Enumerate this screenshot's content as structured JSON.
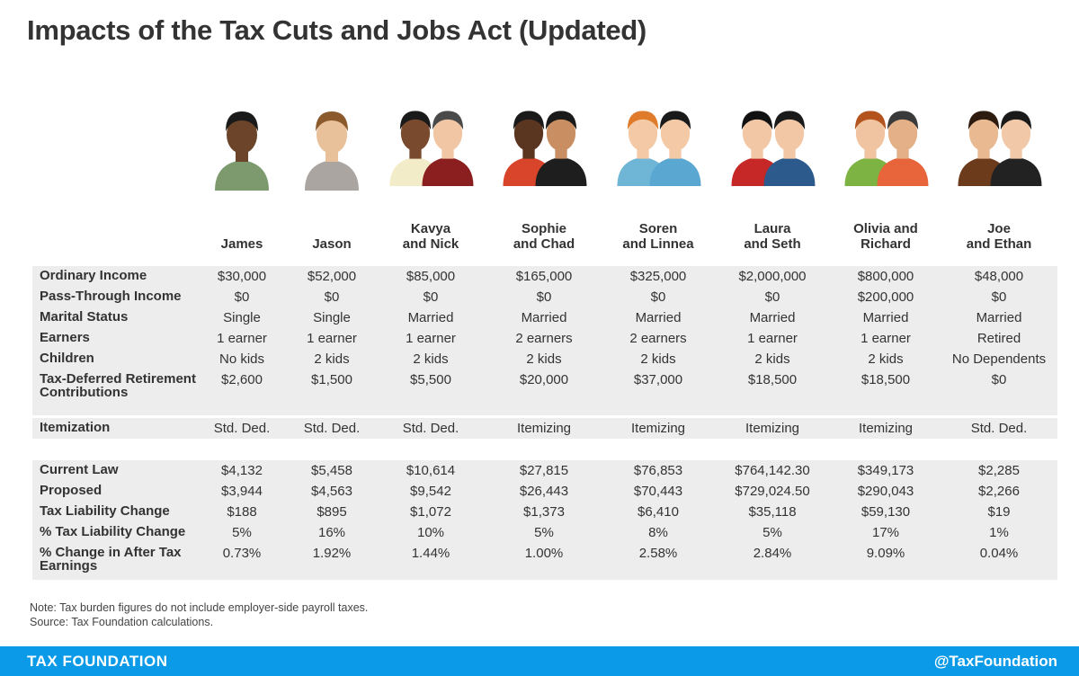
{
  "title": "Impacts of the Tax Cuts and Jobs Act (Updated)",
  "households": [
    {
      "name": [
        "James"
      ],
      "avatar": "man-with-glasses-icon"
    },
    {
      "name": [
        "Jason"
      ],
      "avatar": "man-with-beard-icon"
    },
    {
      "name": [
        "Kavya",
        "and Nick"
      ],
      "avatar": "couple-icon"
    },
    {
      "name": [
        "Sophie",
        "and Chad"
      ],
      "avatar": "couple-icon"
    },
    {
      "name": [
        "Soren",
        "and Linnea"
      ],
      "avatar": "couple-icon"
    },
    {
      "name": [
        "Laura",
        "and Seth"
      ],
      "avatar": "couple-icon"
    },
    {
      "name": [
        "Olivia and",
        "Richard"
      ],
      "avatar": "couple-icon"
    },
    {
      "name": [
        "Joe",
        "and Ethan"
      ],
      "avatar": "couple-icon"
    }
  ],
  "chart_data": {
    "type": "table",
    "title": "Impacts of the Tax Cuts and Jobs Act (Updated)",
    "columns": [
      "James",
      "Jason",
      "Kavya and Nick",
      "Sophie and Chad",
      "Soren and Linnea",
      "Laura and Seth",
      "Olivia and Richard",
      "Joe and Ethan"
    ],
    "rows": [
      {
        "label": "Ordinary Income",
        "values": [
          "$30,000",
          "$52,000",
          "$85,000",
          "$165,000",
          "$325,000",
          "$2,000,000",
          "$800,000",
          "$48,000"
        ]
      },
      {
        "label": "Pass-Through Income",
        "values": [
          "$0",
          "$0",
          "$0",
          "$0",
          "$0",
          "$0",
          "$200,000",
          "$0"
        ]
      },
      {
        "label": "Marital Status",
        "values": [
          "Single",
          "Single",
          "Married",
          "Married",
          "Married",
          "Married",
          "Married",
          "Married"
        ]
      },
      {
        "label": "Earners",
        "values": [
          "1 earner",
          "1 earner",
          "1 earner",
          "2 earners",
          "2 earners",
          "1 earner",
          "1 earner",
          "Retired"
        ]
      },
      {
        "label": "Children",
        "values": [
          "No kids",
          "2 kids",
          "2 kids",
          "2 kids",
          "2 kids",
          "2 kids",
          "2 kids",
          "No Dependents"
        ]
      },
      {
        "label": "Tax-Deferred Retirement Contributions",
        "values": [
          "$2,600",
          "$1,500",
          "$5,500",
          "$20,000",
          "$37,000",
          "$18,500",
          "$18,500",
          "$0"
        ]
      },
      {
        "label": "Itemization",
        "values": [
          "Std. Ded.",
          "Std. Ded.",
          "Std. Ded.",
          "Itemizing",
          "Itemizing",
          "Itemizing",
          "Itemizing",
          "Std. Ded."
        ]
      },
      {
        "label": "Current Law",
        "values": [
          "$4,132",
          "$5,458",
          "$10,614",
          "$27,815",
          "$76,853",
          "$764,142.30",
          "$349,173",
          "$2,285"
        ]
      },
      {
        "label": "Proposed",
        "values": [
          "$3,944",
          "$4,563",
          "$9,542",
          "$26,443",
          "$70,443",
          "$729,024.50",
          "$290,043",
          "$2,266"
        ]
      },
      {
        "label": "Tax Liability Change",
        "values": [
          "$188",
          "$895",
          "$1,072",
          "$1,373",
          "$6,410",
          "$35,118",
          "$59,130",
          "$19"
        ]
      },
      {
        "label": "% Tax Liability Change",
        "values": [
          "5%",
          "16%",
          "10%",
          "5%",
          "8%",
          "5%",
          "17%",
          "1%"
        ]
      },
      {
        "label": "% Change in After Tax Earnings",
        "values": [
          "0.73%",
          "1.92%",
          "1.44%",
          "1.00%",
          "2.58%",
          "2.84%",
          "9.09%",
          "0.04%"
        ]
      }
    ]
  },
  "notes": [
    "Note: Tax burden figures do not include employer-side payroll taxes.",
    "Source: Tax Foundation calculations."
  ],
  "footer": {
    "brand": "TAX FOUNDATION",
    "handle": "@TaxFoundation"
  },
  "colors": {
    "footer": "#0b9ae8",
    "row_shade": "#ededed"
  }
}
